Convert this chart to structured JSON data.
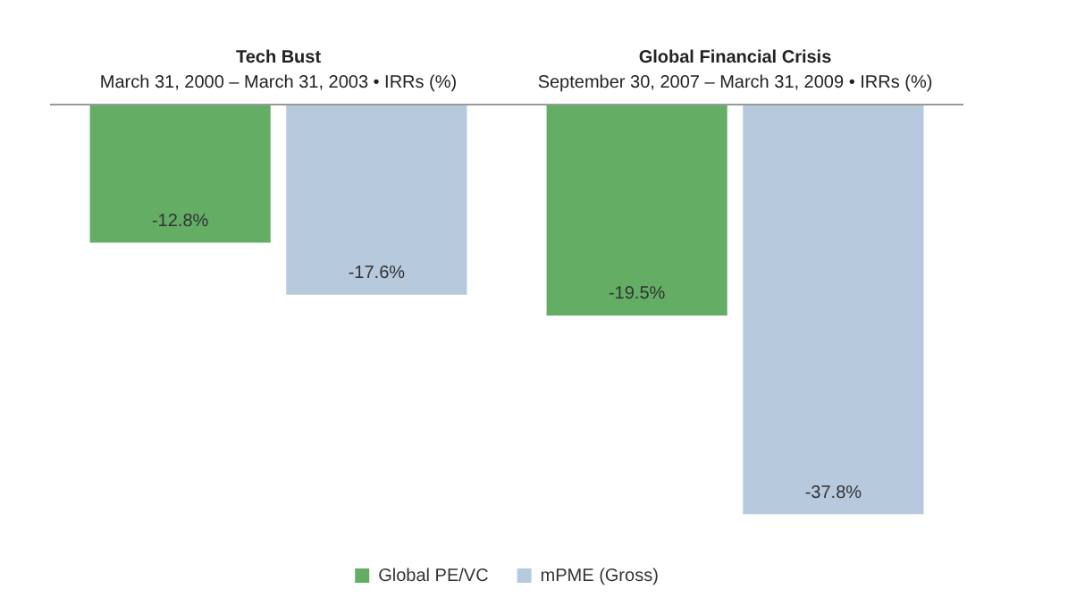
{
  "chart_data": {
    "type": "bar",
    "categories": [
      "Tech Bust",
      "Global Financial Crisis"
    ],
    "annotations": [
      "March 31, 2000 – March 31, 2003 • IRRs (%)",
      "September 30, 2007 – March 31, 2009 • IRRs (%)"
    ],
    "series": [
      {
        "name": "Global PE/VC",
        "color": "#63ad65",
        "values": [
          -12.8,
          -19.5
        ],
        "value_labels": [
          "-12.8%",
          "-19.5%"
        ]
      },
      {
        "name": "mPME (Gross)",
        "color": "#b7c9dd",
        "values": [
          -17.6,
          -37.8
        ],
        "value_labels": [
          "-17.6%",
          "-37.8%"
        ]
      }
    ],
    "legend": "bottom"
  }
}
